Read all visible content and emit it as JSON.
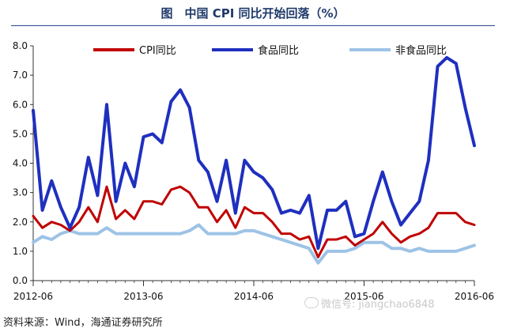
{
  "figure": {
    "title": "图　中国 CPI 同比开始回落（%）",
    "source": "资料来源：Wind，海通证券研究所",
    "watermark": "微信号: jiangchao6848"
  },
  "chart_data": {
    "type": "line",
    "title": "",
    "xlabel": "",
    "ylabel": "",
    "ylim": [
      0,
      8
    ],
    "yticks": [
      "0.0",
      "1.0",
      "2.0",
      "3.0",
      "4.0",
      "5.0",
      "6.0",
      "7.0",
      "8.0"
    ],
    "xtick_labels": [
      "2012-06",
      "2013-06",
      "2014-06",
      "2015-06",
      "2016-06"
    ],
    "grid": false,
    "legend_position": "top",
    "x": [
      "2012-06",
      "2012-07",
      "2012-08",
      "2012-09",
      "2012-10",
      "2012-11",
      "2012-12",
      "2013-01",
      "2013-02",
      "2013-03",
      "2013-04",
      "2013-05",
      "2013-06",
      "2013-07",
      "2013-08",
      "2013-09",
      "2013-10",
      "2013-11",
      "2013-12",
      "2014-01",
      "2014-02",
      "2014-03",
      "2014-04",
      "2014-05",
      "2014-06",
      "2014-07",
      "2014-08",
      "2014-09",
      "2014-10",
      "2014-11",
      "2014-12",
      "2015-01",
      "2015-02",
      "2015-03",
      "2015-04",
      "2015-05",
      "2015-06",
      "2015-07",
      "2015-08",
      "2015-09",
      "2015-10",
      "2015-11",
      "2015-12",
      "2016-01",
      "2016-02",
      "2016-03",
      "2016-04",
      "2016-05",
      "2016-06"
    ],
    "series": [
      {
        "name": "CPI同比",
        "color": "#c00000",
        "values": [
          2.2,
          1.8,
          2.0,
          1.9,
          1.7,
          2.0,
          2.5,
          2.0,
          3.2,
          2.1,
          2.4,
          2.1,
          2.7,
          2.7,
          2.6,
          3.1,
          3.2,
          3.0,
          2.5,
          2.5,
          2.0,
          2.4,
          1.8,
          2.5,
          2.3,
          2.3,
          2.0,
          1.6,
          1.6,
          1.4,
          1.5,
          0.8,
          1.4,
          1.4,
          1.5,
          1.2,
          1.4,
          1.6,
          2.0,
          1.6,
          1.3,
          1.5,
          1.6,
          1.8,
          2.3,
          2.3,
          2.3,
          2.0,
          1.9
        ]
      },
      {
        "name": "食品同比",
        "color": "#1f2fbf",
        "values": [
          5.8,
          2.4,
          3.4,
          2.5,
          1.8,
          2.5,
          4.2,
          2.9,
          6.0,
          2.7,
          4.0,
          3.2,
          4.9,
          5.0,
          4.7,
          6.1,
          6.5,
          5.9,
          4.1,
          3.7,
          2.7,
          4.1,
          2.3,
          4.1,
          3.7,
          3.5,
          3.1,
          2.3,
          2.4,
          2.3,
          2.9,
          1.1,
          2.4,
          2.4,
          2.7,
          1.5,
          1.6,
          2.7,
          3.7,
          2.7,
          1.9,
          2.3,
          2.7,
          4.1,
          7.3,
          7.6,
          7.4,
          5.9,
          4.6
        ]
      },
      {
        "name": "非食品同比",
        "color": "#9dc3e6",
        "values": [
          1.3,
          1.5,
          1.4,
          1.6,
          1.7,
          1.6,
          1.6,
          1.6,
          1.8,
          1.6,
          1.6,
          1.6,
          1.6,
          1.6,
          1.6,
          1.6,
          1.6,
          1.7,
          1.9,
          1.6,
          1.6,
          1.6,
          1.6,
          1.7,
          1.7,
          1.6,
          1.5,
          1.4,
          1.3,
          1.2,
          1.1,
          0.6,
          1.0,
          1.0,
          1.0,
          1.1,
          1.3,
          1.3,
          1.3,
          1.1,
          1.1,
          1.0,
          1.1,
          1.0,
          1.0,
          1.0,
          1.0,
          1.1,
          1.2
        ]
      }
    ]
  }
}
